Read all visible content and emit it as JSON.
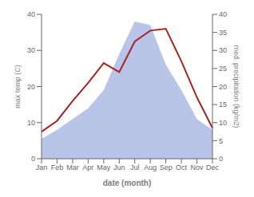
{
  "chart_data": {
    "type": "line",
    "xlabel": "date (month)",
    "ylabel": "max temp (C)",
    "y2label": "med. precipitation (kg/m2)",
    "categories": [
      "Jan",
      "Feb",
      "Mar",
      "Apr",
      "May",
      "Jun",
      "Jul",
      "Aug",
      "Sep",
      "Oct",
      "Nov",
      "Dec"
    ],
    "series": [
      {
        "type": "area",
        "axis": "y2",
        "color": "#b8c4e8",
        "values": [
          5.5,
          8.0,
          11.0,
          14.0,
          19.0,
          29.0,
          38.0,
          37.0,
          26.0,
          19.0,
          11.0,
          8.0
        ]
      },
      {
        "type": "line",
        "color": "#aa2222",
        "values": [
          7.5,
          10.5,
          16.0,
          21.0,
          26.5,
          24.0,
          32.5,
          35.5,
          36.0,
          27.0,
          17.0,
          8.5
        ]
      }
    ],
    "ylim": [
      0,
      40
    ],
    "yticks": [
      0,
      10,
      20,
      30,
      40
    ],
    "y2lim": [
      0,
      40
    ],
    "y2ticks": [
      0,
      5,
      10,
      15,
      20,
      25,
      30,
      35,
      40
    ],
    "grid": false
  }
}
